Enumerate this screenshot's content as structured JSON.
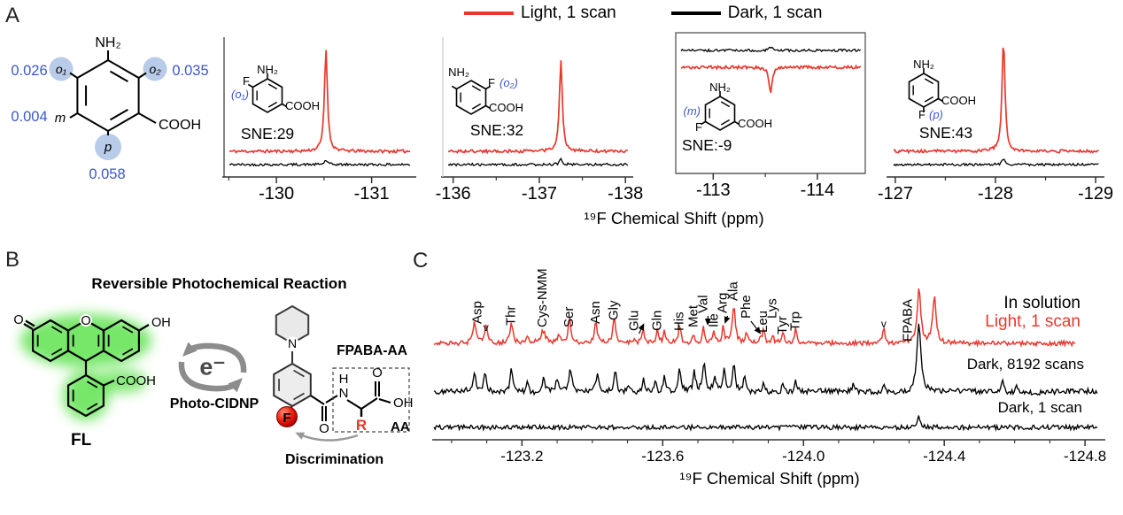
{
  "figure": {
    "panelA": {
      "label": "A",
      "legend": [
        {
          "label": "Light, 1 scan",
          "color": "#e8382d"
        },
        {
          "label": "Dark, 1 scan",
          "color": "#000000"
        }
      ],
      "xlabel": "¹⁹F Chemical Shift (ppm)",
      "molecule": {
        "amine": "NH₂",
        "acid": "COOH",
        "accent": "#3b57cb",
        "circle_fill": "#b8cbe9",
        "positions": [
          {
            "name": "o₁",
            "value": "0.026",
            "circled": true
          },
          {
            "name": "o₂",
            "value": "0.035",
            "circled": true
          },
          {
            "name": "m",
            "value": "0.004",
            "circled": false
          },
          {
            "name": "p",
            "value": "0.058",
            "circled": true
          }
        ]
      },
      "inset": {
        "amine": "NH₂",
        "halide": "F",
        "acid": "COOH"
      }
    },
    "panelB": {
      "label": "B",
      "title": "Reversible Photochemical Reaction",
      "fl": "FL",
      "electron": "e⁻",
      "mechanism": "Photo-CIDNP",
      "compound": "FPABA-AA",
      "aa": "AA",
      "r": "R",
      "f": "F",
      "discrimination": "Discrimination",
      "accent_red": "#e8382d",
      "arrow_gray": "#8c8c8c",
      "atoms": {
        "n": "N",
        "h": "H",
        "o_amide": "O",
        "o_acid": "O",
        "oh": "OH"
      },
      "fluor": {
        "o_ketone": "O",
        "o_ring": "O",
        "oh": "OH",
        "acid": "COOH"
      }
    },
    "panelC": {
      "label": "C",
      "xlabel": "¹⁹F Chemical Shift (ppm)",
      "trace_labels": [
        {
          "text": "In solution",
          "color": "#000000"
        },
        {
          "text": "Light, 1 scan",
          "color": "#e8382d"
        },
        {
          "text": "Dark, 8192 scans",
          "color": "#000000"
        },
        {
          "text": "Dark, 1 scan",
          "color": "#000000"
        }
      ]
    }
  },
  "chart_data": [
    {
      "type": "line",
      "panel": "A",
      "annotation": "SNE:29",
      "site": "(o₁)",
      "isomer": "o1",
      "xrange": [
        -129.45,
        -131.45
      ],
      "xticks": [
        "-130",
        "-131"
      ],
      "minor_step": 0.5,
      "xlabel": "¹⁹F Chemical Shift (ppm)",
      "boxed": false,
      "series": [
        {
          "name": "Light, 1 scan",
          "color": "#e8382d",
          "peaks": [
            [
              -130.52,
              116,
              1.7
            ]
          ]
        },
        {
          "name": "Dark, 1 scan",
          "color": "#000000",
          "peaks": [
            [
              -130.52,
              5,
              1.7
            ]
          ]
        }
      ]
    },
    {
      "type": "line",
      "panel": "A",
      "annotation": "SNE:32",
      "site": "(o₂)",
      "isomer": "o2",
      "xrange": [
        -135.88,
        -138.07
      ],
      "xticks": [
        "-136",
        "-137",
        "-138"
      ],
      "minor_step": 0.5,
      "xlabel": "¹⁹F Chemical Shift (ppm)",
      "boxed": false,
      "series": [
        {
          "name": "Light, 1 scan",
          "color": "#e8382d",
          "peaks": [
            [
              -137.25,
              102,
              1.7
            ]
          ]
        },
        {
          "name": "Dark, 1 scan",
          "color": "#000000",
          "peaks": [
            [
              -137.25,
              6,
              1.7
            ]
          ]
        }
      ]
    },
    {
      "type": "line",
      "panel": "A",
      "annotation": "SNE:-9",
      "site": "(m)",
      "isomer": "m",
      "xrange": [
        -112.64,
        -114.46
      ],
      "xticks": [
        "-113",
        "-114"
      ],
      "minor_step": 0.5,
      "xlabel": "¹⁹F Chemical Shift (ppm)",
      "boxed": true,
      "series": [
        {
          "name": "Dark, 1 scan",
          "color": "#000000",
          "peaks": [
            [
              -113.55,
              4,
              1.7
            ]
          ]
        },
        {
          "name": "Light, 1 scan",
          "color": "#e8382d",
          "peaks": [
            [
              -113.55,
              -29,
              1.7
            ]
          ]
        }
      ]
    },
    {
      "type": "line",
      "panel": "A",
      "annotation": "SNE:43",
      "site": "(p)",
      "isomer": "p",
      "xrange": [
        -126.93,
        -129.07
      ],
      "xticks": [
        "-127",
        "-128",
        "-129"
      ],
      "minor_step": 0.5,
      "xlabel": "¹⁹F Chemical Shift (ppm)",
      "boxed": false,
      "series": [
        {
          "name": "Light, 1 scan",
          "color": "#e8382d",
          "peaks": [
            [
              -128.08,
              127,
              1.6
            ]
          ]
        },
        {
          "name": "Dark, 1 scan",
          "color": "#000000",
          "peaks": [
            [
              -128.08,
              6,
              1.6
            ]
          ]
        }
      ]
    },
    {
      "type": "line",
      "panel": "C",
      "xlabel": "¹⁹F Chemical Shift (ppm)",
      "xrange": [
        -122.95,
        -124.85
      ],
      "xticks": [
        "-123.2",
        "-123.6",
        "-124.0",
        "-124.4",
        "-124.8"
      ],
      "minor_step": 0.1,
      "peak_labels": [
        {
          "text": "Asp",
          "ppm": -123.075
        },
        {
          "text": "Thr",
          "ppm": -123.17
        },
        {
          "text": "Cys-NMM",
          "ppm": -123.26
        },
        {
          "text": "Ser",
          "ppm": -123.335
        },
        {
          "text": "Asn",
          "ppm": -123.41
        },
        {
          "text": "Gly",
          "ppm": -123.462
        },
        {
          "text": "Glu",
          "ppm": -123.52,
          "arrow_to": -123.545
        },
        {
          "text": "Gln",
          "ppm": -123.585
        },
        {
          "text": "His",
          "ppm": -123.648
        },
        {
          "text": "Met",
          "ppm": -123.688
        },
        {
          "text": "Val",
          "ppm": -123.716,
          "arrow_to": -123.728
        },
        {
          "text": "Ile",
          "ppm": -123.746
        },
        {
          "text": "Arg",
          "ppm": -123.772,
          "arrow_to": -123.778
        },
        {
          "text": "Ala",
          "ppm": -123.802
        },
        {
          "text": "Phe",
          "ppm": -123.838,
          "arrow_to": -123.876
        },
        {
          "text": "Leu",
          "ppm": -123.886
        },
        {
          "text": "Lys",
          "ppm": -123.912
        },
        {
          "text": "Tyr",
          "ppm": -123.942
        },
        {
          "text": "Trp",
          "ppm": -123.978
        },
        {
          "text": "FPABA",
          "ppm": -124.328
        }
      ],
      "markers": [
        {
          "text": "v",
          "ppm": -123.098
        },
        {
          "text": "v",
          "ppm": -124.228
        }
      ],
      "series": [
        {
          "name": "Light, 1 scan",
          "color": "#e8382d",
          "peaks": [
            [
              -123.065,
              26,
              1.8
            ],
            [
              -123.098,
              22,
              1.6
            ],
            [
              -123.17,
              26,
              1.8
            ],
            [
              -123.215,
              8,
              1.5
            ],
            [
              -123.26,
              14,
              3.2
            ],
            [
              -123.305,
              10,
              1.5
            ],
            [
              -123.335,
              28,
              1.6
            ],
            [
              -123.41,
              26,
              1.7
            ],
            [
              -123.462,
              28,
              1.7
            ],
            [
              -123.52,
              7,
              1.4
            ],
            [
              -123.545,
              16,
              1.5
            ],
            [
              -123.585,
              17,
              1.5
            ],
            [
              -123.605,
              13,
              1.4
            ],
            [
              -123.648,
              22,
              1.6
            ],
            [
              -123.688,
              11,
              1.4
            ],
            [
              -123.716,
              17,
              1.5
            ],
            [
              -123.746,
              13,
              1.4
            ],
            [
              -123.772,
              19,
              1.5
            ],
            [
              -123.802,
              44,
              1.9
            ],
            [
              -123.838,
              12,
              1.5
            ],
            [
              -123.876,
              7,
              1.3
            ],
            [
              -123.886,
              16,
              1.5
            ],
            [
              -123.912,
              10,
              1.4
            ],
            [
              -123.942,
              14,
              1.5
            ],
            [
              -123.978,
              16,
              1.5
            ],
            [
              -124.228,
              16,
              1.5
            ],
            [
              -124.328,
              62,
              2.3
            ],
            [
              -124.372,
              55,
              2.2
            ]
          ]
        },
        {
          "name": "Dark, 8192 scans",
          "color": "#000000",
          "peaks": [
            [
              -123.065,
              22,
              1.8
            ],
            [
              -123.095,
              20,
              1.7
            ],
            [
              -123.17,
              26,
              1.8
            ],
            [
              -123.215,
              12,
              1.6
            ],
            [
              -123.262,
              18,
              1.8
            ],
            [
              -123.3,
              15,
              1.6
            ],
            [
              -123.338,
              26,
              1.7
            ],
            [
              -123.415,
              22,
              1.7
            ],
            [
              -123.465,
              24,
              1.7
            ],
            [
              -123.502,
              10,
              1.5
            ],
            [
              -123.545,
              17,
              1.6
            ],
            [
              -123.578,
              14,
              1.5
            ],
            [
              -123.605,
              19,
              1.6
            ],
            [
              -123.648,
              26,
              1.7
            ],
            [
              -123.69,
              22,
              1.6
            ],
            [
              -123.718,
              32,
              1.8
            ],
            [
              -123.748,
              16,
              1.5
            ],
            [
              -123.775,
              25,
              1.6
            ],
            [
              -123.802,
              30,
              1.8
            ],
            [
              -123.832,
              18,
              1.6
            ],
            [
              -123.886,
              14,
              1.5
            ],
            [
              -123.942,
              11,
              1.4
            ],
            [
              -123.978,
              13,
              1.5
            ],
            [
              -124.142,
              9,
              1.4
            ],
            [
              -124.228,
              12,
              1.5
            ],
            [
              -124.328,
              80,
              2.6
            ],
            [
              -124.565,
              16,
              1.6
            ],
            [
              -124.605,
              11,
              1.5
            ]
          ]
        },
        {
          "name": "Dark, 1 scan",
          "color": "#000000",
          "peaks": [
            [
              -124.328,
              13,
              1.6
            ]
          ]
        }
      ]
    }
  ]
}
